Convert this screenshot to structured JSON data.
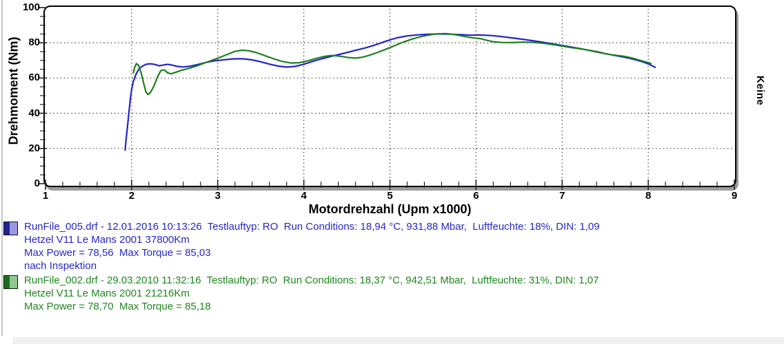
{
  "chart_data": {
    "type": "line",
    "title": "",
    "xlabel": "Motordrehzahl (Upm x1000)",
    "ylabel": "Drehmoment (Nm)",
    "right_side_label": "Keine",
    "xlim": [
      0.992,
      9.008
    ],
    "ylim": [
      -1.2,
      100.4
    ],
    "xticks": [
      1,
      2,
      3,
      4,
      5,
      6,
      7,
      8,
      9
    ],
    "xtick_minor_step": 0.2,
    "yticks": [
      0,
      20,
      40,
      60,
      80,
      100
    ],
    "ytick_minor_step": 5,
    "grid": "dotted",
    "grid_x": [
      2,
      3,
      4,
      5,
      6,
      7,
      8
    ],
    "grid_y": [
      20,
      40,
      60,
      80
    ],
    "series": [
      {
        "name": "RunFile_005.drf",
        "color": "#2222cc",
        "max_power": 78.56,
        "max_torque": 85.03,
        "points": [
          [
            1.925,
            19
          ],
          [
            1.93,
            22
          ],
          [
            1.94,
            27
          ],
          [
            1.955,
            34
          ],
          [
            1.97,
            41
          ],
          [
            1.985,
            48
          ],
          [
            2.0,
            53.5
          ],
          [
            2.02,
            58
          ],
          [
            2.05,
            62
          ],
          [
            2.08,
            64.8
          ],
          [
            2.12,
            66.6
          ],
          [
            2.17,
            67.8
          ],
          [
            2.22,
            68.1
          ],
          [
            2.27,
            67.7
          ],
          [
            2.32,
            66.9
          ],
          [
            2.37,
            67.4
          ],
          [
            2.42,
            67.8
          ],
          [
            2.47,
            67.3
          ],
          [
            2.53,
            66.6
          ],
          [
            2.6,
            66.3
          ],
          [
            2.68,
            66.7
          ],
          [
            2.77,
            67.7
          ],
          [
            2.87,
            68.9
          ],
          [
            2.97,
            69.8
          ],
          [
            3.08,
            70.4
          ],
          [
            3.19,
            70.9
          ],
          [
            3.3,
            70.9
          ],
          [
            3.4,
            70.3
          ],
          [
            3.5,
            69.2
          ],
          [
            3.6,
            67.9
          ],
          [
            3.7,
            66.8
          ],
          [
            3.8,
            66.2
          ],
          [
            3.9,
            66.6
          ],
          [
            4.0,
            67.8
          ],
          [
            4.1,
            69.4
          ],
          [
            4.22,
            71.1
          ],
          [
            4.35,
            72.7
          ],
          [
            4.48,
            74.2
          ],
          [
            4.6,
            75.7
          ],
          [
            4.72,
            77.2
          ],
          [
            4.84,
            79.0
          ],
          [
            4.96,
            81.0
          ],
          [
            5.08,
            82.8
          ],
          [
            5.2,
            83.9
          ],
          [
            5.32,
            84.5
          ],
          [
            5.45,
            84.9
          ],
          [
            5.58,
            85.0
          ],
          [
            5.7,
            84.9
          ],
          [
            5.82,
            84.6
          ],
          [
            5.95,
            84.3
          ],
          [
            6.05,
            84.4
          ],
          [
            6.18,
            84.1
          ],
          [
            6.3,
            83.5
          ],
          [
            6.45,
            82.6
          ],
          [
            6.6,
            81.6
          ],
          [
            6.75,
            80.5
          ],
          [
            6.9,
            79.3
          ],
          [
            7.05,
            78.1
          ],
          [
            7.2,
            76.8
          ],
          [
            7.33,
            75.5
          ],
          [
            7.45,
            74.3
          ],
          [
            7.57,
            73.2
          ],
          [
            7.68,
            72.2
          ],
          [
            7.78,
            71.2
          ],
          [
            7.87,
            70.1
          ],
          [
            7.95,
            68.9
          ],
          [
            8.02,
            67.6
          ],
          [
            8.08,
            66.1
          ]
        ]
      },
      {
        "name": "RunFile_002.drf",
        "color": "#1e7e1e",
        "max_power": 78.7,
        "max_torque": 85.18,
        "points": [
          [
            2.02,
            63
          ],
          [
            2.035,
            66
          ],
          [
            2.055,
            68.2
          ],
          [
            2.08,
            67.2
          ],
          [
            2.11,
            63
          ],
          [
            2.14,
            57
          ],
          [
            2.165,
            52.2
          ],
          [
            2.19,
            50.6
          ],
          [
            2.22,
            51.8
          ],
          [
            2.26,
            55.5
          ],
          [
            2.3,
            60.5
          ],
          [
            2.34,
            64.3
          ],
          [
            2.38,
            64.6
          ],
          [
            2.42,
            62.9
          ],
          [
            2.46,
            62.4
          ],
          [
            2.51,
            63.2
          ],
          [
            2.58,
            64.4
          ],
          [
            2.66,
            65.4
          ],
          [
            2.75,
            66.7
          ],
          [
            2.84,
            68.4
          ],
          [
            2.93,
            70.0
          ],
          [
            3.02,
            71.6
          ],
          [
            3.11,
            73.4
          ],
          [
            3.2,
            75.1
          ],
          [
            3.28,
            75.8
          ],
          [
            3.36,
            75.5
          ],
          [
            3.45,
            74.4
          ],
          [
            3.55,
            72.7
          ],
          [
            3.65,
            70.9
          ],
          [
            3.75,
            69.4
          ],
          [
            3.85,
            68.5
          ],
          [
            3.95,
            68.7
          ],
          [
            4.05,
            69.8
          ],
          [
            4.15,
            71.2
          ],
          [
            4.25,
            72.4
          ],
          [
            4.33,
            72.8
          ],
          [
            4.42,
            72.4
          ],
          [
            4.52,
            71.6
          ],
          [
            4.6,
            71.3
          ],
          [
            4.68,
            71.8
          ],
          [
            4.76,
            72.9
          ],
          [
            4.85,
            74.4
          ],
          [
            4.95,
            76.3
          ],
          [
            5.05,
            78.3
          ],
          [
            5.15,
            80.3
          ],
          [
            5.25,
            82.0
          ],
          [
            5.35,
            83.4
          ],
          [
            5.45,
            84.4
          ],
          [
            5.55,
            85.1
          ],
          [
            5.65,
            85.2
          ],
          [
            5.75,
            84.7
          ],
          [
            5.85,
            83.8
          ],
          [
            5.95,
            82.9
          ],
          [
            6.05,
            82.4
          ],
          [
            6.12,
            81.5
          ],
          [
            6.2,
            80.6
          ],
          [
            6.3,
            80.2
          ],
          [
            6.42,
            80.1
          ],
          [
            6.55,
            80.4
          ],
          [
            6.68,
            80.2
          ],
          [
            6.8,
            79.6
          ],
          [
            6.93,
            78.7
          ],
          [
            7.05,
            77.7
          ],
          [
            7.18,
            76.8
          ],
          [
            7.3,
            75.9
          ],
          [
            7.42,
            74.8
          ],
          [
            7.53,
            73.5
          ],
          [
            7.62,
            72.9
          ],
          [
            7.72,
            72.3
          ],
          [
            7.82,
            71.3
          ],
          [
            7.9,
            70.1
          ],
          [
            7.97,
            69.1
          ],
          [
            8.03,
            68.3
          ]
        ]
      }
    ]
  },
  "legend": [
    {
      "color": "#2626cb",
      "swatch_dark": "#22228f",
      "swatch_light": "#9a9ae4",
      "lines": [
        "RunFile_005.drf - 12.01.2016 10:13:26  Testlauftyp: RO  Run Conditions: 18,94 °C, 931,88 Mbar,  Luftfeuchte: 18%, DIN: 1,09",
        "Hetzel V11 Le Mans 2001 37800Km",
        "Max Power = 78,56  Max Torque = 85,03",
        "nach Inspektion"
      ]
    },
    {
      "color": "#1f871f",
      "swatch_dark": "#1c6b1c",
      "swatch_light": "#8fc98f",
      "lines": [
        "RunFile_002.drf - 29.03.2010 11:32:16  Testlauftyp: RO  Run Conditions: 18,37 °C, 942,51 Mbar,  Luftfeuchte: 31%, DIN: 1,07",
        "Hetzel V11 Le Mans 2001 21216Km",
        "Max Power = 78,70  Max Torque = 85,18"
      ]
    }
  ]
}
